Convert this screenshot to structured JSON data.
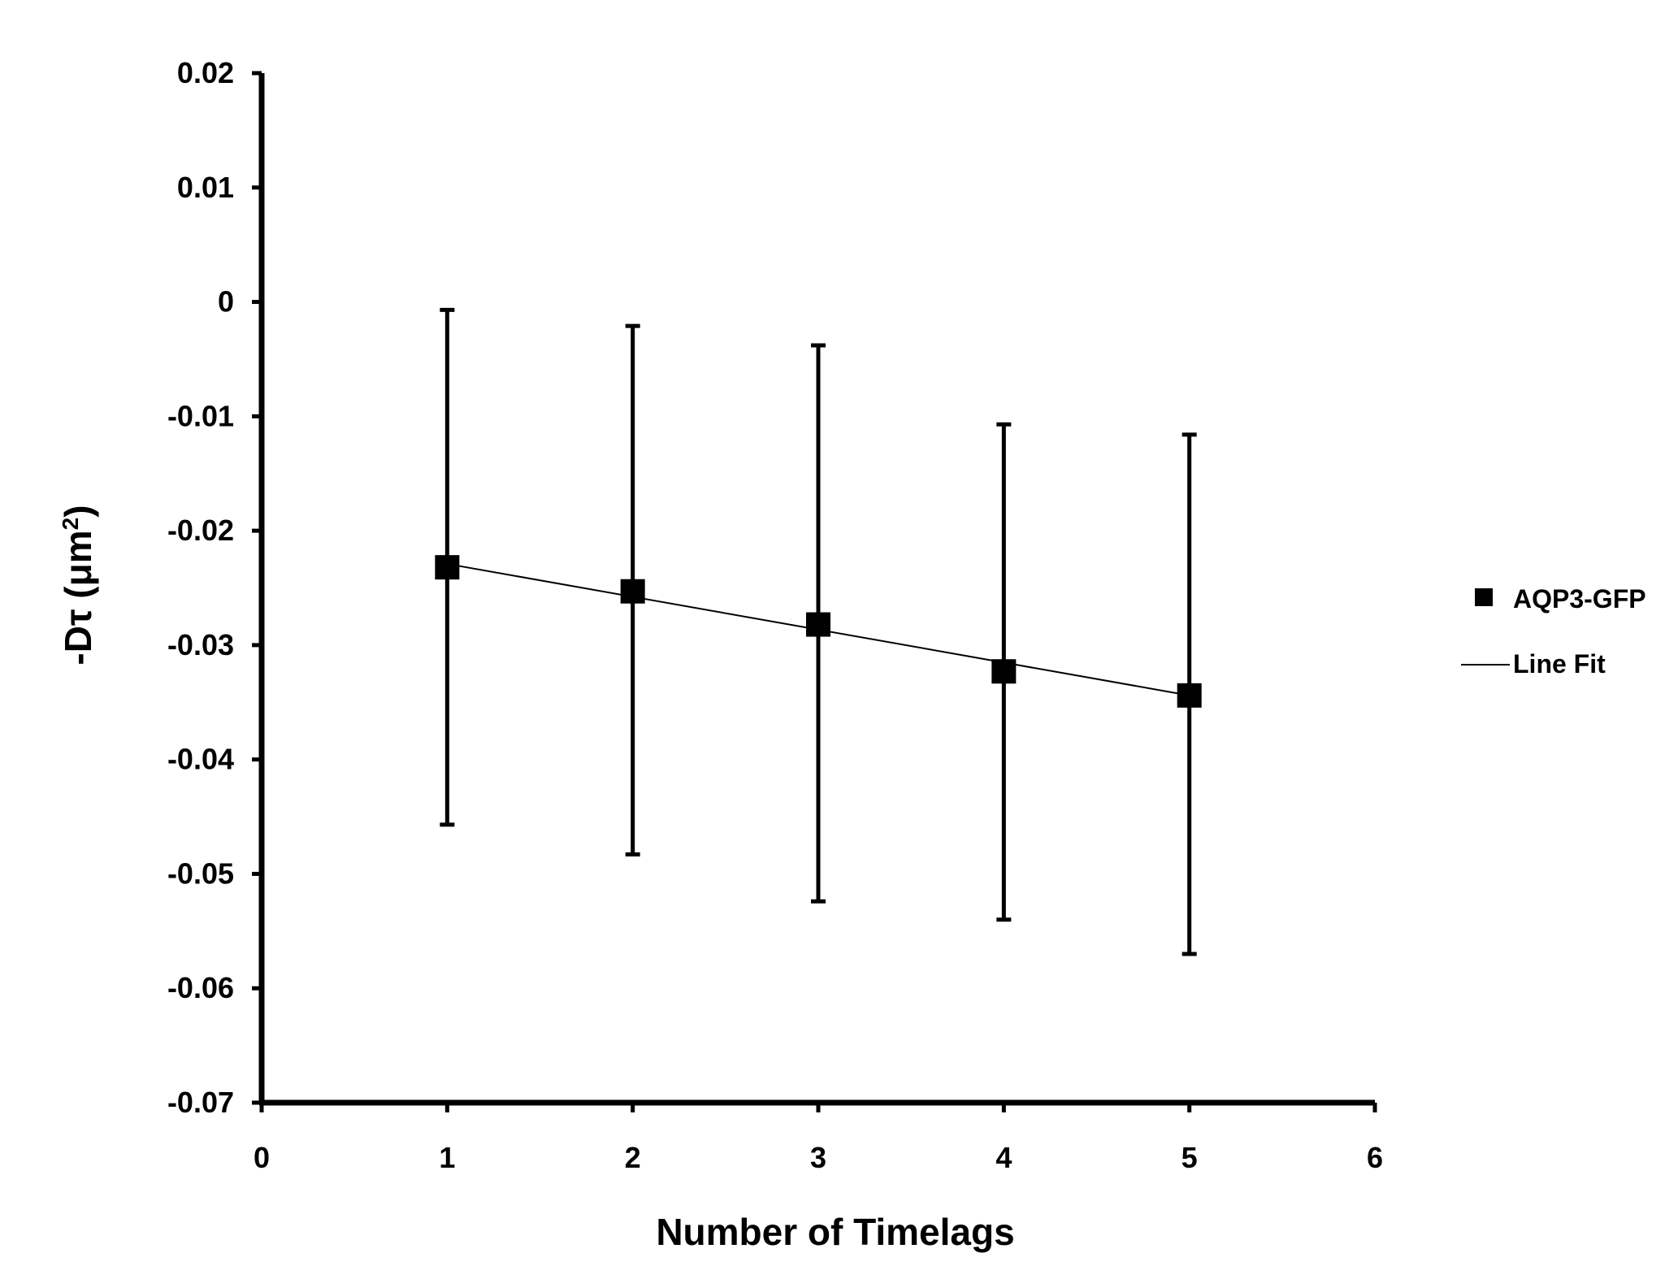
{
  "chart_data": {
    "type": "scatter",
    "xlabel": "Number of Timelags",
    "ylabel": "-Dτ (μm",
    "ylabel_sup": "2",
    "ylabel_close": ")",
    "xlim": [
      0,
      6
    ],
    "ylim": [
      -0.07,
      0.02
    ],
    "x_ticks": [
      "0",
      "1",
      "2",
      "3",
      "4",
      "5",
      "6"
    ],
    "y_ticks": [
      "0.02",
      "0.01",
      "0",
      "-0.01",
      "-0.02",
      "-0.03",
      "-0.04",
      "-0.05",
      "-0.06",
      "-0.07"
    ],
    "grid": false,
    "legend_position": "right",
    "series": [
      {
        "name": "AQP3-GFP",
        "marker": "square",
        "color": "#000000",
        "x": [
          1,
          2,
          3,
          4,
          5
        ],
        "y": [
          -0.0232,
          -0.0253,
          -0.0282,
          -0.0323,
          -0.0344
        ],
        "error_upper": [
          -0.0007,
          -0.0021,
          -0.0038,
          -0.0107,
          -0.0116
        ],
        "error_lower": [
          -0.0457,
          -0.0483,
          -0.0524,
          -0.054,
          -0.057
        ]
      }
    ],
    "fit": {
      "name": "Line Fit",
      "color": "#000000",
      "x": [
        1,
        5
      ],
      "y": [
        -0.0229,
        -0.0344
      ]
    }
  }
}
